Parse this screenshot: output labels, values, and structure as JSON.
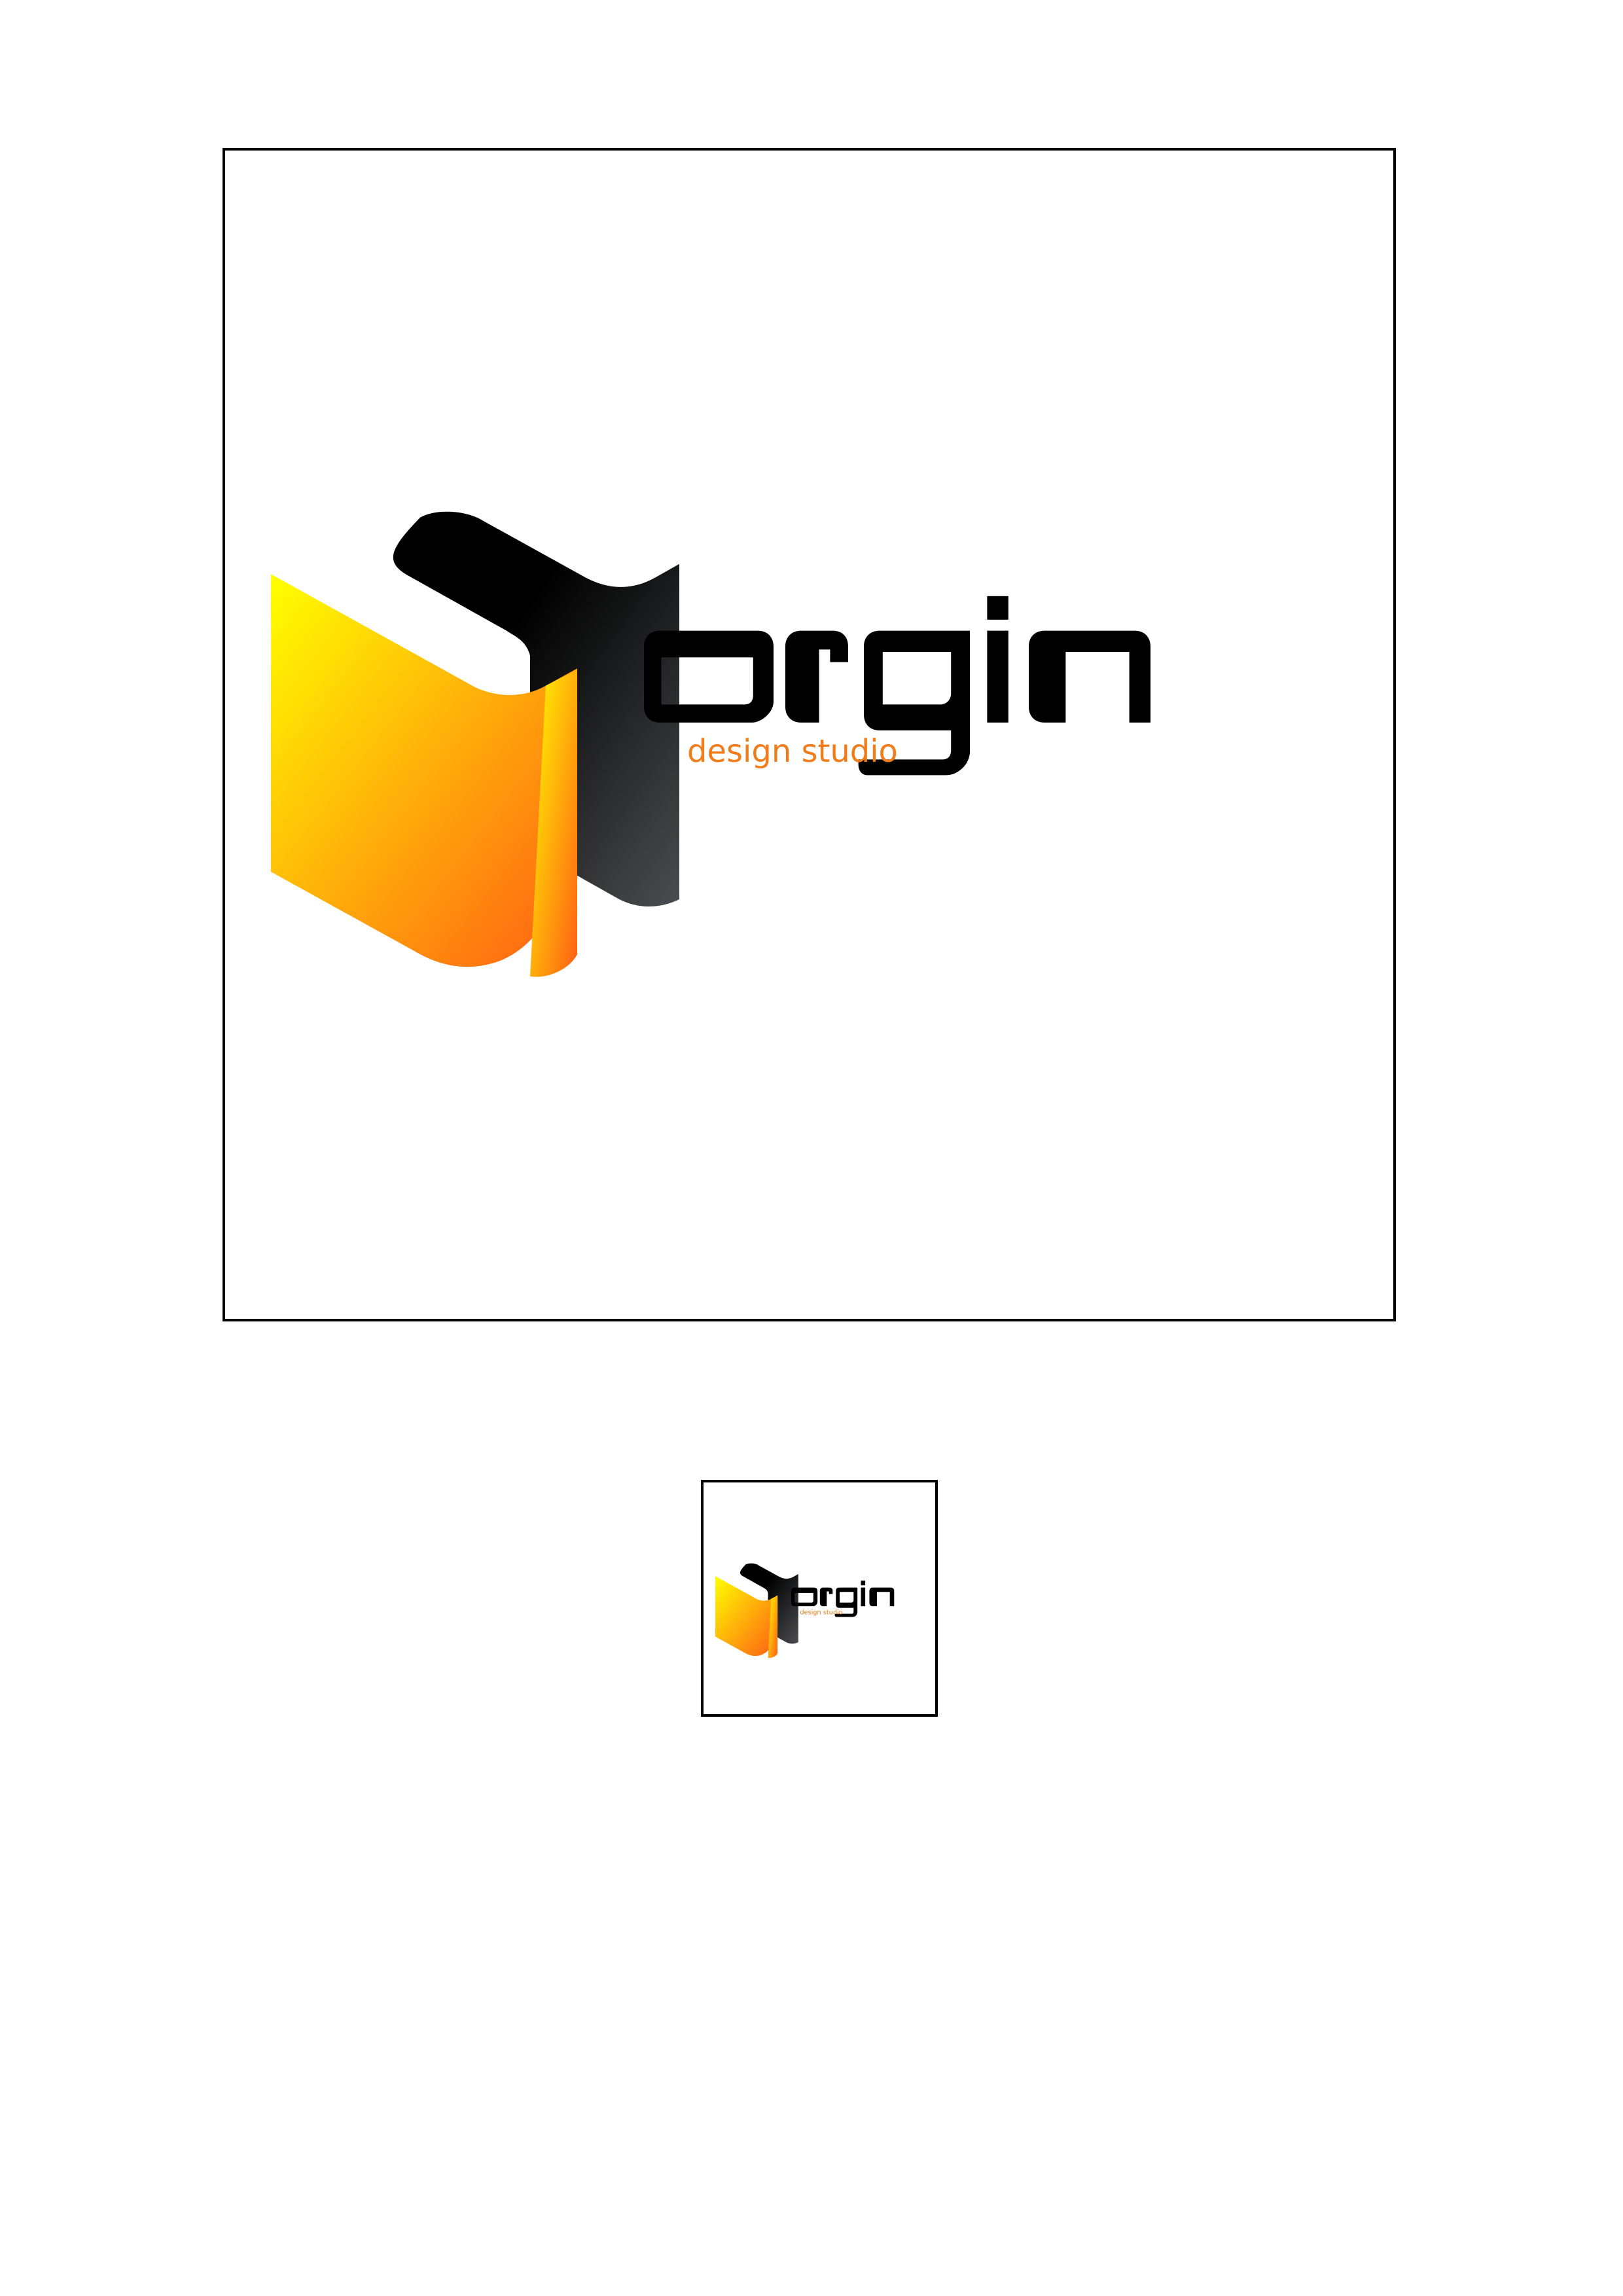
{
  "logo": {
    "wordmark": "orgin",
    "tagline": "design studio",
    "colors": {
      "gradient_start": "#ffff00",
      "gradient_end": "#ff5e14",
      "dark_start": "#000000",
      "dark_end": "#4a4c4f",
      "tagline": "#f07d1a",
      "wordmark": "#000000",
      "border": "#000000"
    }
  },
  "previews": [
    {
      "size": "large"
    },
    {
      "size": "small"
    }
  ]
}
